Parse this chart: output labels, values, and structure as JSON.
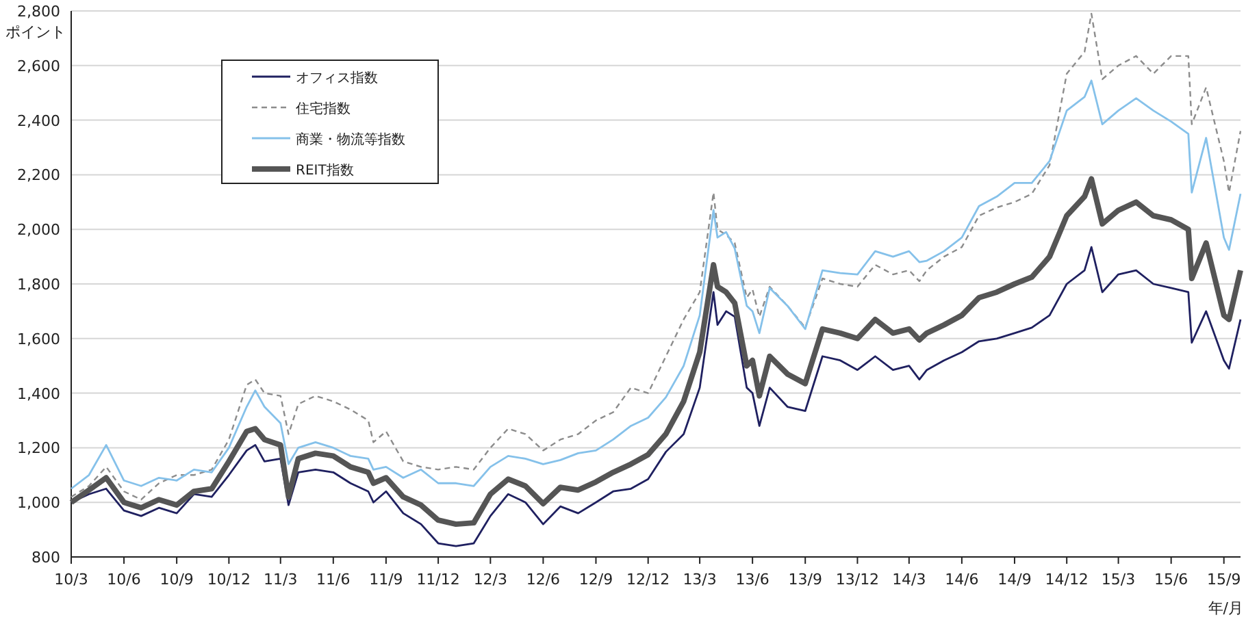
{
  "chart_data": {
    "type": "line",
    "ylabel": "ポイント",
    "xlabel": "年/月",
    "legend": "top left",
    "grid": "y",
    "xlim": [
      "2010-03-01",
      "2015-09-30"
    ],
    "ylim": [
      800,
      2800
    ],
    "xticks": [
      {
        "value": "2010-03-01",
        "label": "10/3"
      },
      {
        "value": "2010-06-01",
        "label": "10/6"
      },
      {
        "value": "2010-09-01",
        "label": "10/9"
      },
      {
        "value": "2010-12-01",
        "label": "10/12"
      },
      {
        "value": "2011-03-01",
        "label": "11/3"
      },
      {
        "value": "2011-06-01",
        "label": "11/6"
      },
      {
        "value": "2011-09-01",
        "label": "11/9"
      },
      {
        "value": "2011-12-01",
        "label": "11/12"
      },
      {
        "value": "2012-03-01",
        "label": "12/3"
      },
      {
        "value": "2012-06-01",
        "label": "12/6"
      },
      {
        "value": "2012-09-01",
        "label": "12/9"
      },
      {
        "value": "2012-12-01",
        "label": "12/12"
      },
      {
        "value": "2013-03-01",
        "label": "13/3"
      },
      {
        "value": "2013-06-01",
        "label": "13/6"
      },
      {
        "value": "2013-09-01",
        "label": "13/9"
      },
      {
        "value": "2013-12-01",
        "label": "13/12"
      },
      {
        "value": "2014-03-01",
        "label": "14/3"
      },
      {
        "value": "2014-06-01",
        "label": "14/6"
      },
      {
        "value": "2014-09-01",
        "label": "14/9"
      },
      {
        "value": "2014-12-01",
        "label": "14/12"
      },
      {
        "value": "2015-03-01",
        "label": "15/3"
      },
      {
        "value": "2015-06-01",
        "label": "15/6"
      },
      {
        "value": "2015-09-01",
        "label": "15/9"
      }
    ],
    "yticks": [
      {
        "value": 800,
        "label": "800"
      },
      {
        "value": 1000,
        "label": "1,000"
      },
      {
        "value": 1200,
        "label": "1,200"
      },
      {
        "value": 1400,
        "label": "1,400"
      },
      {
        "value": 1600,
        "label": "1,600"
      },
      {
        "value": 1800,
        "label": "1,800"
      },
      {
        "value": 2000,
        "label": "2,000"
      },
      {
        "value": 2200,
        "label": "2,200"
      },
      {
        "value": 2400,
        "label": "2,400"
      },
      {
        "value": 2600,
        "label": "2,600"
      },
      {
        "value": 2800,
        "label": "2,800"
      }
    ],
    "x": [
      "2010-03-01",
      "2010-04-01",
      "2010-05-01",
      "2010-06-01",
      "2010-07-01",
      "2010-08-01",
      "2010-09-01",
      "2010-10-01",
      "2010-11-01",
      "2010-12-01",
      "2011-01-01",
      "2011-01-16",
      "2011-02-01",
      "2011-03-01",
      "2011-03-15",
      "2011-04-01",
      "2011-05-01",
      "2011-06-01",
      "2011-07-01",
      "2011-08-01",
      "2011-08-10",
      "2011-09-01",
      "2011-10-01",
      "2011-11-01",
      "2011-12-01",
      "2012-01-01",
      "2012-02-01",
      "2012-03-01",
      "2012-04-01",
      "2012-05-01",
      "2012-06-01",
      "2012-07-01",
      "2012-08-01",
      "2012-09-01",
      "2012-10-01",
      "2012-11-01",
      "2012-12-01",
      "2013-01-01",
      "2013-02-01",
      "2013-03-01",
      "2013-03-25",
      "2013-04-01",
      "2013-04-16",
      "2013-05-01",
      "2013-05-22",
      "2013-06-01",
      "2013-06-13",
      "2013-07-01",
      "2013-08-01",
      "2013-09-01",
      "2013-10-01",
      "2013-11-01",
      "2013-12-01",
      "2014-01-01",
      "2014-02-01",
      "2014-03-01",
      "2014-03-19",
      "2014-04-01",
      "2014-05-01",
      "2014-06-01",
      "2014-07-01",
      "2014-08-01",
      "2014-09-01",
      "2014-10-01",
      "2014-11-01",
      "2014-12-01",
      "2015-01-01",
      "2015-01-13",
      "2015-02-01",
      "2015-03-01",
      "2015-04-01",
      "2015-05-01",
      "2015-06-01",
      "2015-07-01",
      "2015-07-07",
      "2015-08-01",
      "2015-09-01",
      "2015-09-10",
      "2015-09-30"
    ],
    "series": [
      {
        "name": "オフィス指数",
        "color": "#1f2060",
        "line_style": "solid",
        "values": [
          1000,
          1030,
          1050,
          970,
          950,
          980,
          960,
          1030,
          1020,
          1100,
          1190,
          1210,
          1150,
          1160,
          990,
          1110,
          1120,
          1110,
          1070,
          1040,
          1000,
          1040,
          960,
          920,
          850,
          840,
          850,
          950,
          1030,
          1000,
          920,
          985,
          960,
          1000,
          1040,
          1050,
          1085,
          1185,
          1250,
          1420,
          1770,
          1650,
          1700,
          1680,
          1420,
          1400,
          1280,
          1420,
          1350,
          1335,
          1535,
          1520,
          1485,
          1535,
          1485,
          1500,
          1450,
          1485,
          1520,
          1550,
          1590,
          1600,
          1620,
          1640,
          1685,
          1800,
          1850,
          1935,
          1770,
          1835,
          1850,
          1800,
          1785,
          1770,
          1585,
          1700,
          1520,
          1490,
          1670
        ]
      },
      {
        "name": "住宅指数",
        "color": "#8c8c8c",
        "line_style": "dashed",
        "values": [
          1020,
          1060,
          1130,
          1040,
          1010,
          1070,
          1100,
          1100,
          1120,
          1230,
          1430,
          1450,
          1400,
          1390,
          1250,
          1360,
          1390,
          1370,
          1340,
          1300,
          1220,
          1260,
          1150,
          1130,
          1120,
          1130,
          1120,
          1200,
          1270,
          1250,
          1190,
          1230,
          1250,
          1300,
          1330,
          1420,
          1400,
          1535,
          1670,
          1770,
          2135,
          2000,
          1980,
          1950,
          1750,
          1780,
          1680,
          1790,
          1720,
          1640,
          1820,
          1800,
          1790,
          1870,
          1835,
          1850,
          1810,
          1850,
          1900,
          1935,
          2050,
          2080,
          2100,
          2130,
          2235,
          2570,
          2650,
          2790,
          2550,
          2600,
          2635,
          2570,
          2635,
          2635,
          2385,
          2520,
          2250,
          2135,
          2360
        ]
      },
      {
        "name": "商業・物流等指数",
        "color": "#85c1ea",
        "line_style": "solid",
        "values": [
          1050,
          1100,
          1210,
          1080,
          1060,
          1090,
          1080,
          1120,
          1110,
          1200,
          1350,
          1410,
          1350,
          1290,
          1140,
          1200,
          1220,
          1200,
          1170,
          1160,
          1120,
          1130,
          1090,
          1120,
          1070,
          1070,
          1060,
          1130,
          1170,
          1160,
          1140,
          1155,
          1180,
          1190,
          1230,
          1280,
          1310,
          1385,
          1500,
          1685,
          2070,
          1970,
          1990,
          1930,
          1720,
          1700,
          1620,
          1785,
          1720,
          1635,
          1850,
          1840,
          1835,
          1920,
          1900,
          1920,
          1880,
          1885,
          1920,
          1970,
          2085,
          2120,
          2170,
          2170,
          2250,
          2435,
          2485,
          2545,
          2385,
          2435,
          2480,
          2435,
          2395,
          2350,
          2135,
          2335,
          1970,
          1925,
          2130
        ]
      },
      {
        "name": "REIT指数",
        "color": "#555555",
        "line_style": "solid",
        "values": [
          1000,
          1045,
          1090,
          1000,
          980,
          1010,
          990,
          1040,
          1050,
          1150,
          1260,
          1270,
          1230,
          1210,
          1020,
          1160,
          1180,
          1170,
          1130,
          1110,
          1070,
          1090,
          1020,
          990,
          935,
          920,
          925,
          1030,
          1085,
          1060,
          995,
          1055,
          1045,
          1075,
          1110,
          1140,
          1175,
          1250,
          1370,
          1550,
          1870,
          1790,
          1770,
          1730,
          1500,
          1520,
          1390,
          1535,
          1470,
          1435,
          1635,
          1620,
          1600,
          1670,
          1620,
          1635,
          1595,
          1620,
          1650,
          1685,
          1750,
          1770,
          1800,
          1825,
          1900,
          2050,
          2120,
          2185,
          2020,
          2070,
          2100,
          2050,
          2035,
          2000,
          1820,
          1950,
          1685,
          1670,
          1850
        ]
      }
    ]
  }
}
